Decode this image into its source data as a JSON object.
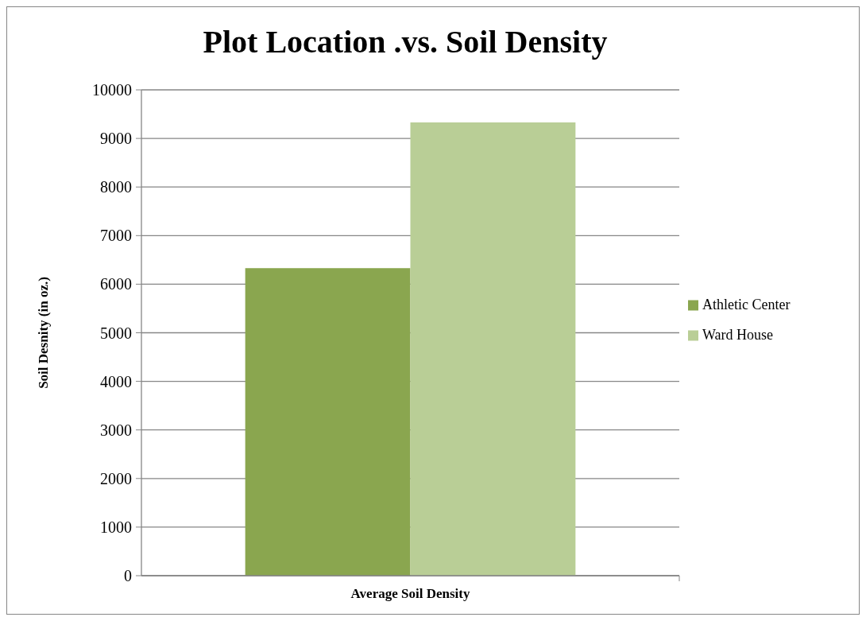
{
  "chart_data": {
    "type": "bar",
    "title": "Plot Location .vs. Soil Density",
    "ylabel": "Soil Desnity (in oz.)",
    "categories": [
      "Average Soil Density"
    ],
    "series": [
      {
        "name": "Athletic Center",
        "color": "#8aa64f",
        "values": [
          6330
        ]
      },
      {
        "name": "Ward House",
        "color": "#b9ce96",
        "values": [
          9330
        ]
      }
    ],
    "ylim": [
      0,
      10000
    ],
    "yticks": [
      0,
      1000,
      2000,
      3000,
      4000,
      5000,
      6000,
      7000,
      8000,
      9000,
      10000
    ],
    "grid": "y",
    "legend": "right"
  }
}
